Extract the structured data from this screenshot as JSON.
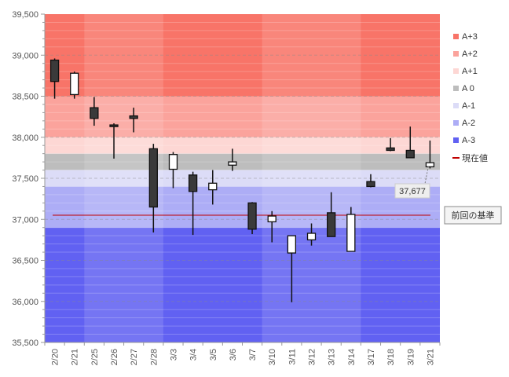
{
  "chart_data": {
    "type": "candlestick",
    "title": "",
    "xlabel": "",
    "ylabel": "",
    "ylim": [
      35500,
      39500
    ],
    "y_ticks": [
      "35,500",
      "36,000",
      "36,500",
      "37,000",
      "37,500",
      "38,000",
      "38,500",
      "39,000",
      "39,500"
    ],
    "y_tick_values": [
      35500,
      36000,
      36500,
      37000,
      37500,
      38000,
      38500,
      39000,
      39500
    ],
    "categories": [
      "2/20",
      "2/21",
      "2/25",
      "2/26",
      "2/27",
      "2/28",
      "3/3",
      "3/4",
      "3/5",
      "3/6",
      "3/7",
      "3/10",
      "3/11",
      "3/12",
      "3/13",
      "3/14",
      "3/17",
      "3/18",
      "3/19",
      "3/21"
    ],
    "candles": [
      {
        "open": 38940,
        "high": 38960,
        "low": 38470,
        "close": 38680
      },
      {
        "open": 38520,
        "high": 38800,
        "low": 38470,
        "close": 38780
      },
      {
        "open": 38360,
        "high": 38490,
        "low": 38140,
        "close": 38230
      },
      {
        "open": 38150,
        "high": 38170,
        "low": 37740,
        "close": 38130
      },
      {
        "open": 38260,
        "high": 38360,
        "low": 38060,
        "close": 38230
      },
      {
        "open": 37860,
        "high": 37920,
        "low": 36840,
        "close": 37150
      },
      {
        "open": 37610,
        "high": 37820,
        "low": 37380,
        "close": 37790
      },
      {
        "open": 37540,
        "high": 37580,
        "low": 36810,
        "close": 37340
      },
      {
        "open": 37360,
        "high": 37600,
        "low": 37180,
        "close": 37440
      },
      {
        "open": 37660,
        "high": 37860,
        "low": 37590,
        "close": 37700
      },
      {
        "open": 37200,
        "high": 37210,
        "low": 36820,
        "close": 36880
      },
      {
        "open": 36970,
        "high": 37100,
        "low": 36720,
        "close": 37040
      },
      {
        "open": 36590,
        "high": 36800,
        "low": 35990,
        "close": 36800
      },
      {
        "open": 36750,
        "high": 36950,
        "low": 36680,
        "close": 36830
      },
      {
        "open": 37080,
        "high": 37330,
        "low": 36790,
        "close": 36790
      },
      {
        "open": 36610,
        "high": 37150,
        "low": 36610,
        "close": 37060
      },
      {
        "open": 37460,
        "high": 37550,
        "low": 37390,
        "close": 37400
      },
      {
        "open": 37870,
        "high": 37990,
        "low": 37830,
        "close": 37840
      },
      {
        "open": 37840,
        "high": 38130,
        "low": 37750,
        "close": 37750
      },
      {
        "open": 37640,
        "high": 37960,
        "low": 37620,
        "close": 37690
      }
    ],
    "bands": [
      {
        "name": "A+3",
        "color": "#f87468",
        "from": 38500,
        "to": 39500
      },
      {
        "name": "A+2",
        "color": "#fba39c",
        "from": 38000,
        "to": 38500
      },
      {
        "name": "A+1",
        "color": "#fdd7d4",
        "from": 37800,
        "to": 38000
      },
      {
        "name": "A 0",
        "color": "#bdbdbd",
        "from": 37600,
        "to": 37800
      },
      {
        "name": "A-1",
        "color": "#dcdcf7",
        "from": 37400,
        "to": 37600
      },
      {
        "name": "A-2",
        "color": "#adadf6",
        "from": 36900,
        "to": 37400
      },
      {
        "name": "A-3",
        "color": "#6161f2",
        "from": 35500,
        "to": 36900
      }
    ],
    "current_value": {
      "name": "現在値",
      "value": 37677,
      "label": "37,677",
      "color": "#c00000"
    },
    "previous_base": {
      "label": "前回の基準",
      "value": 37050,
      "color": "#c00000"
    },
    "legend_placement": "right",
    "grid": true
  }
}
